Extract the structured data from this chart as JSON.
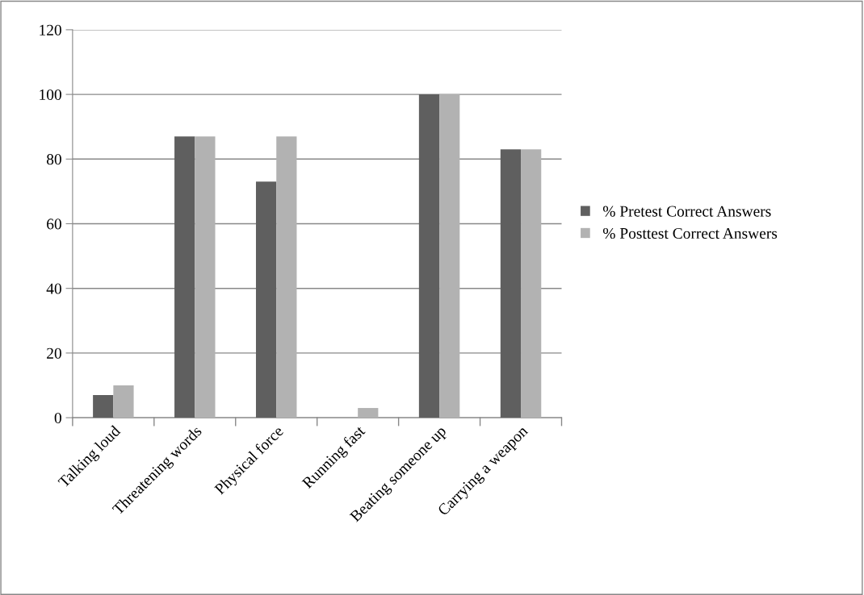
{
  "chart_data": {
    "type": "bar",
    "categories": [
      "Talking loud",
      "Threatening words",
      "Physical force",
      "Running fast",
      "Beating someone up",
      "Carrying a weapon"
    ],
    "series": [
      {
        "name": "% Pretest Correct Answers",
        "color": "#5f5f5f",
        "values": [
          7,
          87,
          73,
          0,
          100,
          83
        ]
      },
      {
        "name": "% Posttest Correct Answers",
        "color": "#b2b2b2",
        "values": [
          10,
          87,
          87,
          3,
          100,
          83
        ]
      }
    ],
    "ylim": [
      0,
      120
    ],
    "yticks": [
      0,
      20,
      40,
      60,
      80,
      100,
      120
    ],
    "grid": "y",
    "legend": "right"
  }
}
